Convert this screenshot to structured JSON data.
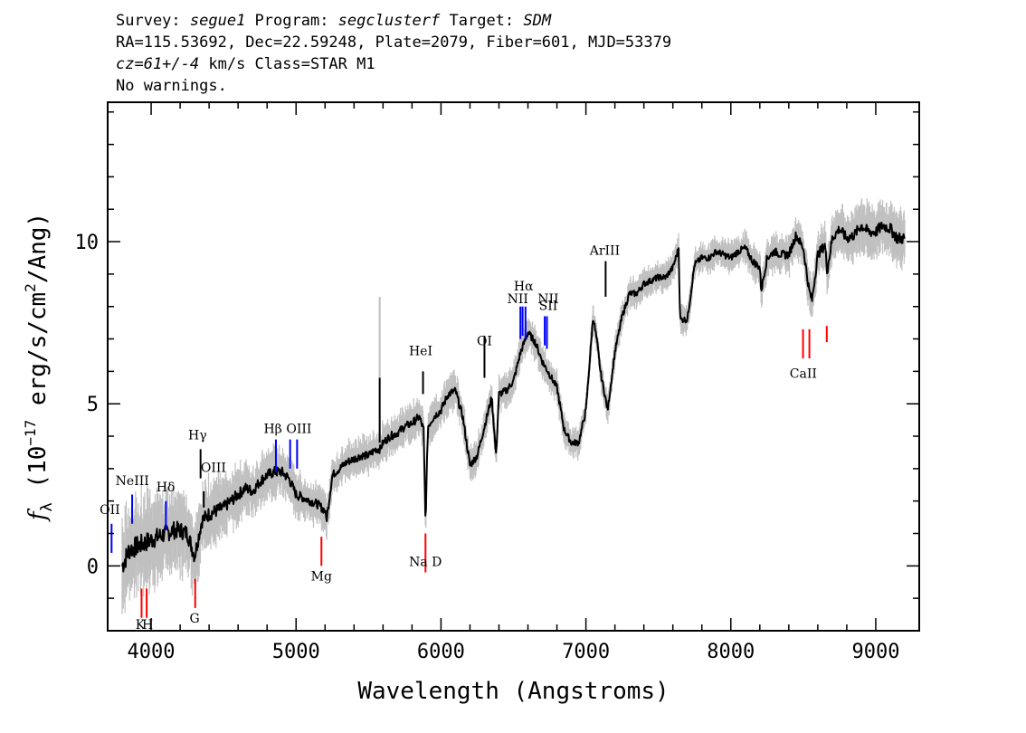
{
  "header": {
    "line1": [
      {
        "t": "Survey: "
      },
      {
        "t": "segue1",
        "i": true
      },
      {
        "t": " Program: "
      },
      {
        "t": "segclusterf",
        "i": true
      },
      {
        "t": " Target: "
      },
      {
        "t": "SDM",
        "i": true
      }
    ],
    "line2": "RA=115.53692, Dec=22.59248, Plate=2079, Fiber=601, MJD=53379",
    "line3": [
      {
        "t": "cz=61+/-4",
        "i": true
      },
      {
        "t": " km/s Class=STAR M1"
      }
    ],
    "line4": "No warnings."
  },
  "chart_data": {
    "type": "line",
    "xlabel": "Wavelength (Angstroms)",
    "ylabel_html": "f_λ (10^-17 erg/s/cm^2/Ang)",
    "ylabel_parts": {
      "f": "f",
      "sub": "λ",
      "pre": " (10",
      "exp1": "−17",
      "mid": " erg/s/cm",
      "exp2": "2",
      "post": "/Ang)"
    },
    "xlim": [
      3700,
      9300
    ],
    "ylim": [
      -2,
      14.3
    ],
    "xticks": [
      4000,
      5000,
      6000,
      7000,
      8000,
      9000
    ],
    "yticks": [
      0,
      5,
      10
    ],
    "colors": {
      "flux": "#000000",
      "error_band": "#c0c0c0",
      "emission": "#0000ff",
      "absorption": "#ff0000",
      "sky": "#000000"
    },
    "series": [
      {
        "kind": "flux",
        "x": [
          3800,
          3850,
          3900,
          3950,
          4000,
          4050,
          4100,
          4150,
          4200,
          4250,
          4300,
          4350,
          4400,
          4450,
          4500,
          4550,
          4600,
          4650,
          4700,
          4750,
          4800,
          4850,
          4900,
          4950,
          5000,
          5050,
          5100,
          5150,
          5200,
          5210,
          5250,
          5300,
          5350,
          5400,
          5450,
          5500,
          5550,
          5580,
          5600,
          5650,
          5700,
          5750,
          5800,
          5850,
          5880,
          5893,
          5910,
          5950,
          6000,
          6050,
          6100,
          6150,
          6200,
          6250,
          6300,
          6350,
          6380,
          6400,
          6450,
          6500,
          6550,
          6600,
          6650,
          6700,
          6750,
          6800,
          6850,
          6900,
          6950,
          7000,
          7050,
          7080,
          7100,
          7150,
          7200,
          7250,
          7300,
          7350,
          7400,
          7450,
          7500,
          7550,
          7600,
          7640,
          7650,
          7700,
          7750,
          7800,
          7850,
          7900,
          7950,
          8000,
          8050,
          8100,
          8150,
          8200,
          8210,
          8250,
          8300,
          8350,
          8400,
          8450,
          8500,
          8540,
          8560,
          8600,
          8650,
          8665,
          8700,
          8750,
          8800,
          8850,
          8900,
          8950,
          9000,
          9050,
          9100,
          9150,
          9200
        ],
        "y": [
          0.0,
          0.5,
          0.6,
          0.7,
          0.8,
          0.9,
          1.0,
          1.1,
          1.1,
          1.0,
          0.3,
          1.4,
          1.6,
          1.7,
          1.8,
          2.0,
          2.2,
          2.4,
          2.3,
          2.6,
          2.8,
          2.9,
          2.9,
          2.7,
          2.2,
          2.1,
          2.0,
          1.9,
          1.7,
          1.4,
          2.8,
          3.0,
          3.2,
          3.3,
          3.4,
          3.4,
          3.6,
          3.6,
          3.8,
          4.0,
          4.1,
          4.3,
          4.4,
          4.6,
          4.2,
          1.3,
          4.3,
          4.6,
          4.8,
          5.3,
          5.4,
          4.6,
          3.1,
          3.4,
          4.3,
          5.2,
          3.4,
          5.3,
          5.4,
          5.7,
          6.6,
          7.2,
          6.9,
          6.3,
          5.9,
          5.5,
          4.2,
          3.8,
          3.8,
          4.8,
          7.7,
          6.8,
          6.0,
          4.8,
          6.6,
          7.7,
          8.4,
          8.4,
          8.7,
          8.8,
          8.9,
          8.9,
          9.2,
          9.8,
          7.6,
          7.6,
          9.3,
          9.5,
          9.5,
          9.7,
          9.6,
          9.5,
          9.7,
          9.8,
          9.4,
          9.2,
          8.5,
          9.5,
          9.7,
          9.6,
          9.6,
          10.2,
          9.8,
          8.5,
          8.2,
          9.6,
          9.9,
          9.1,
          10.1,
          10.4,
          10.1,
          10.2,
          10.5,
          10.3,
          10.3,
          10.5,
          10.4,
          10.1,
          10.1
        ],
        "err_x": [
          3800,
          4000,
          4300,
          4500,
          4700,
          4900,
          5100,
          5300,
          5500,
          5700,
          5900,
          6100,
          6300,
          6500,
          6700,
          6900,
          7100,
          7300,
          7500,
          7700,
          7900,
          8100,
          8300,
          8500,
          8700,
          8900,
          9100,
          9200
        ],
        "err_width": [
          1.2,
          1.1,
          0.9,
          0.7,
          0.6,
          0.6,
          0.5,
          0.45,
          0.45,
          0.45,
          0.45,
          0.45,
          0.4,
          0.4,
          0.4,
          0.35,
          0.35,
          0.35,
          0.35,
          0.35,
          0.35,
          0.4,
          0.45,
          0.5,
          0.55,
          0.6,
          0.65,
          0.7
        ]
      }
    ],
    "spikes": [
      {
        "x": 5577,
        "y_top": 8.3,
        "y_bot": 3.8,
        "color": "#c0c0c0"
      },
      {
        "x": 5577,
        "y_top": 5.8,
        "y_bot": 3.8,
        "color": "#000000"
      }
    ],
    "emission_lines": [
      {
        "x": 3727,
        "y_top": 1.3,
        "y_bot": 0.4,
        "label": "OII",
        "lx": 3715,
        "ly": 1.6
      },
      {
        "x": 3869,
        "y_top": 2.2,
        "y_bot": 1.3,
        "label": "NeIII",
        "lx": 3870,
        "ly": 2.5
      },
      {
        "x": 4102,
        "y_top": 2.0,
        "y_bot": 1.1,
        "label": "Hδ",
        "lx": 4100,
        "ly": 2.3
      },
      {
        "x": 4341,
        "y_top": 3.6,
        "y_bot": 2.7,
        "label": "Hγ",
        "lx": 4320,
        "ly": 3.9,
        "line_color": "#000000"
      },
      {
        "x": 4363,
        "y_top": 2.3,
        "y_bot": 1.8,
        "label": "OIII",
        "lx": 4430,
        "ly": 2.9,
        "line_color": "#000000"
      },
      {
        "x": 4861,
        "y_top": 3.9,
        "y_bot": 2.9,
        "label": "Hβ",
        "lx": 4840,
        "ly": 4.1
      },
      {
        "x": 4959,
        "y_top": 3.9,
        "y_bot": 3.0,
        "label": "",
        "lx": 0,
        "ly": 0
      },
      {
        "x": 5007,
        "y_top": 3.9,
        "y_bot": 3.0,
        "label": "OIII",
        "lx": 5020,
        "ly": 4.1
      },
      {
        "x": 5876,
        "y_top": 6.0,
        "y_bot": 5.3,
        "label": "HeI",
        "lx": 5860,
        "ly": 6.5,
        "line_color": "#000000"
      },
      {
        "x": 6300,
        "y_top": 7.1,
        "y_bot": 5.8,
        "label": "OI",
        "lx": 6300,
        "ly": 6.8,
        "line_color": "#000000"
      },
      {
        "x": 6548,
        "y_top": 8.0,
        "y_bot": 7.0,
        "label": "NII",
        "lx": 6530,
        "ly": 8.1
      },
      {
        "x": 6563,
        "y_top": 8.0,
        "y_bot": 7.1,
        "label": "Hα",
        "lx": 6570,
        "ly": 8.5
      },
      {
        "x": 6583,
        "y_top": 8.0,
        "y_bot": 7.0,
        "label": "NII",
        "lx": 6740,
        "ly": 8.1
      },
      {
        "x": 6716,
        "y_top": 7.7,
        "y_bot": 6.8,
        "label": "SII",
        "lx": 6740,
        "ly": 7.9
      },
      {
        "x": 6731,
        "y_top": 7.7,
        "y_bot": 6.7,
        "label": "",
        "lx": 0,
        "ly": 0
      },
      {
        "x": 7136,
        "y_top": 9.4,
        "y_bot": 8.3,
        "label": "ArIII",
        "lx": 7130,
        "ly": 9.6,
        "line_color": "#000000"
      }
    ],
    "absorption_lines": [
      {
        "x": 3934,
        "y_top": -0.7,
        "y_bot": -1.6,
        "label": "K",
        "lx": 3925,
        "ly": -1.95
      },
      {
        "x": 3969,
        "y_top": -0.7,
        "y_bot": -1.6,
        "label": "H",
        "lx": 3975,
        "ly": -1.95
      },
      {
        "x": 4304,
        "y_top": -0.4,
        "y_bot": -1.3,
        "label": "G",
        "lx": 4300,
        "ly": -1.75
      },
      {
        "x": 5175,
        "y_top": 0.9,
        "y_bot": 0.0,
        "label": "Mg",
        "lx": 5175,
        "ly": -0.45
      },
      {
        "x": 5893,
        "y_top": 1.0,
        "y_bot": -0.2,
        "label": "Na D",
        "lx": 5893,
        "ly": 0.0
      },
      {
        "x": 8498,
        "y_top": 7.3,
        "y_bot": 6.4,
        "label": "",
        "lx": 0,
        "ly": 0
      },
      {
        "x": 8542,
        "y_top": 7.3,
        "y_bot": 6.4,
        "label": "CaII",
        "lx": 8500,
        "ly": 5.8
      },
      {
        "x": 8662,
        "y_top": 7.4,
        "y_bot": 6.9,
        "label": "",
        "lx": 0,
        "ly": 0
      }
    ]
  }
}
